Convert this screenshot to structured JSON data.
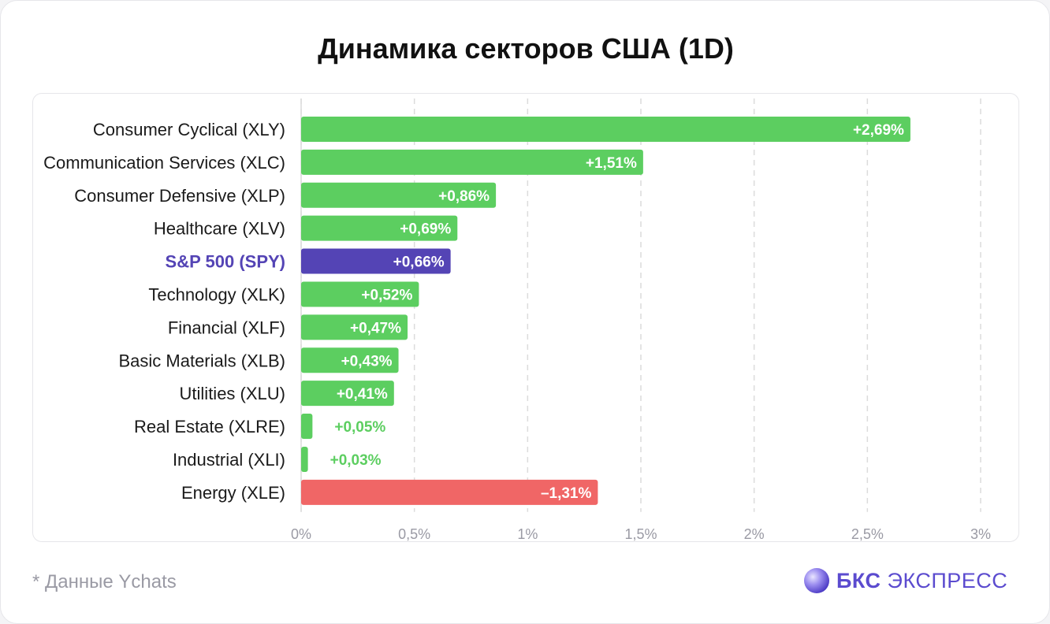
{
  "title": "Динамика секторов США (1D)",
  "source": "* Данные Ychats",
  "brand": {
    "bold": "БКС",
    "light": "ЭКСПРЕСС",
    "logo_icon": "bks-sphere-icon"
  },
  "colors": {
    "positive": "#5cce60",
    "negative": "#f06666",
    "highlight": "#5444b5",
    "label_text": "#1a1a1a",
    "tick_text": "#9a9aa4",
    "grid": "#dcdcdc"
  },
  "chart_data": {
    "type": "bar",
    "orientation": "horizontal",
    "categories": [
      "Consumer Cyclical (XLY)",
      "Communication Services (XLC)",
      "Consumer Defensive (XLP)",
      "Healthcare (XLV)",
      "S&P 500 (SPY)",
      "Technology (XLK)",
      "Financial (XLF)",
      "Basic Materials (XLB)",
      "Utilities (XLU)",
      "Real Estate (XLRE)",
      "Industrial (XLI)",
      "Energy (XLE)"
    ],
    "values": [
      2.69,
      1.51,
      0.86,
      0.69,
      0.66,
      0.52,
      0.47,
      0.43,
      0.41,
      0.05,
      0.03,
      -1.31
    ],
    "value_labels": [
      "+2,69%",
      "+1,51%",
      "+0,86%",
      "+0,69%",
      "+0,66%",
      "+0,52%",
      "+0,47%",
      "+0,43%",
      "+0,41%",
      "+0,05%",
      "+0,03%",
      "–1,31%"
    ],
    "highlight_category": "S&P 500 (SPY)",
    "bar_length": "absolute value",
    "xlim": [
      0,
      3
    ],
    "xticks": [
      0,
      0.5,
      1,
      1.5,
      2,
      2.5,
      3
    ],
    "xtick_labels": [
      "0%",
      "0,5%",
      "1%",
      "1,5%",
      "2%",
      "2,5%",
      "3%"
    ],
    "title": "Динамика секторов США (1D)",
    "xlabel": "",
    "ylabel": "",
    "grid": "vertical dashed"
  }
}
